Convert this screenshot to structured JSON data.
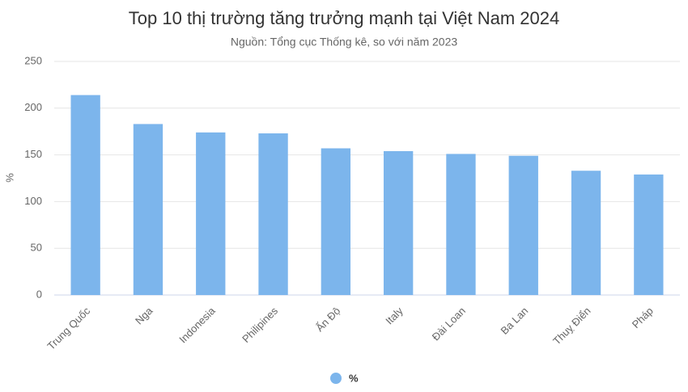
{
  "chart_data": {
    "type": "bar",
    "title": "Top 10 thị trường tăng trưởng mạnh tại Việt Nam 2024",
    "subtitle": "Nguồn: Tổng cục Thống kê, so với năm 2023",
    "y_label": "%",
    "categories": [
      "Trung Quốc",
      "Nga",
      "Indonesia",
      "Philipines",
      "Ấn Độ",
      "Italy",
      "Đài Loan",
      "Ba Lan",
      "Thuỵ Điển",
      "Pháp"
    ],
    "series": [
      {
        "name": "%",
        "color": "#7cb5ec",
        "values": [
          214,
          183,
          174,
          173,
          157,
          154,
          151,
          149,
          133,
          129
        ]
      }
    ],
    "ylim": [
      0,
      250
    ],
    "yticks": [
      0,
      50,
      100,
      150,
      200,
      250
    ],
    "grid": true,
    "legend": "bottom"
  }
}
